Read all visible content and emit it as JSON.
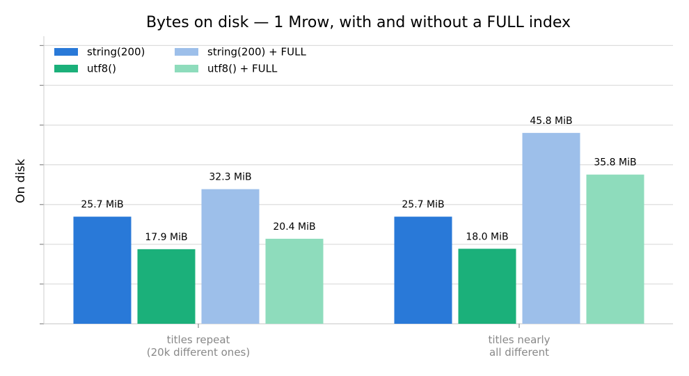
{
  "chart_data": {
    "type": "bar",
    "title": "Bytes on disk — 1 Mrow, with and without a FULL index",
    "y_label": "On disk",
    "categories": [
      "titles repeat\n(20k different ones)",
      "titles nearly\nall different"
    ],
    "series": [
      {
        "name": "string(200)",
        "color": "#2979d8",
        "values": [
          25.7,
          25.7
        ],
        "value_labels": [
          "25.7 MiB",
          "25.7 MiB"
        ]
      },
      {
        "name": "utf8()",
        "color": "#1bb07a",
        "values": [
          17.9,
          18.0
        ],
        "value_labels": [
          "17.9 MiB",
          "18.0 MiB"
        ]
      },
      {
        "name": "string(200) + FULL",
        "color": "#9dbfea",
        "values": [
          32.3,
          45.8
        ],
        "value_labels": [
          "32.3 MiB",
          "45.8 MiB"
        ]
      },
      {
        "name": "utf8() + FULL",
        "color": "#8edcbc",
        "values": [
          20.4,
          35.8
        ],
        "value_labels": [
          "20.4 MiB",
          "35.8 MiB"
        ]
      }
    ],
    "ylim": [
      0,
      69
    ],
    "yticks": [
      0,
      9.54,
      19.07,
      28.61,
      38.15,
      47.68,
      57.22,
      66.76
    ],
    "grid": true,
    "legend": "upper-left"
  }
}
